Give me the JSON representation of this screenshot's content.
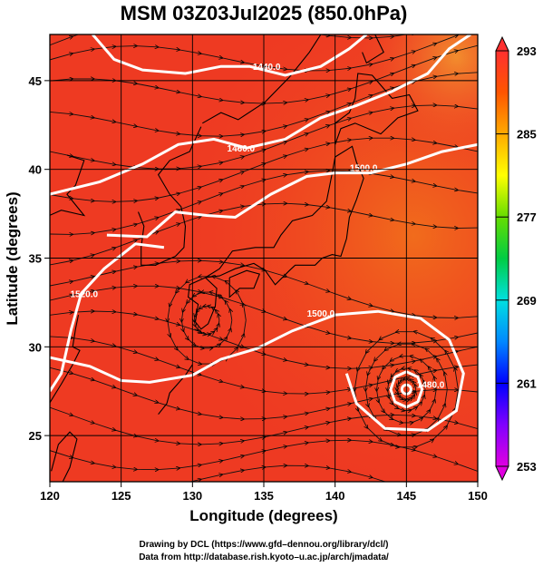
{
  "chart_data": {
    "type": "heatmap",
    "title": "MSM 03Z03Jul2025 (850.0hPa)",
    "xlabel": "Longitude (degrees)",
    "ylabel": "Latitude  (degrees)",
    "xlim": [
      120,
      150
    ],
    "ylim": [
      22.4,
      47.6
    ],
    "x_ticks": [
      120,
      125,
      130,
      135,
      140,
      145,
      150
    ],
    "y_ticks": [
      25,
      30,
      35,
      40,
      45
    ],
    "colorbar": {
      "min": 253,
      "max": 293,
      "ticks": [
        253,
        261,
        269,
        277,
        285,
        293
      ],
      "colormap": [
        "#e000e0",
        "#8000ff",
        "#0000ff",
        "#0088ff",
        "#00e0e0",
        "#00cc44",
        "#66dd00",
        "#ffff00",
        "#ffaa00",
        "#ff5500",
        "#ff3030"
      ]
    },
    "field": "temperature (K)",
    "contour_labels": [
      {
        "text": "1440.0",
        "lon": 135.2,
        "lat": 45.6
      },
      {
        "text": "1460.0",
        "lon": 133.4,
        "lat": 41.0
      },
      {
        "text": "1500.0",
        "lon": 142.0,
        "lat": 39.9
      },
      {
        "text": "1520.0",
        "lon": 122.4,
        "lat": 32.8
      },
      {
        "text": "1500.0",
        "lon": 139.0,
        "lat": 31.7
      },
      {
        "text": "1480.0",
        "lon": 146.7,
        "lat": 27.7
      }
    ],
    "grid": true,
    "legend": "colorbar right"
  },
  "credits": {
    "line1": "Drawing by DCL (https://www.gfd–dennou.org/library/dcl/)",
    "line2": "Data from http://database.rish.kyoto–u.ac.jp/arch/jmadata/"
  },
  "colors": {
    "field_base": "#ee3a22",
    "field_warm": "#f06a1c",
    "contour": "#ffffff",
    "coast": "#000000"
  }
}
